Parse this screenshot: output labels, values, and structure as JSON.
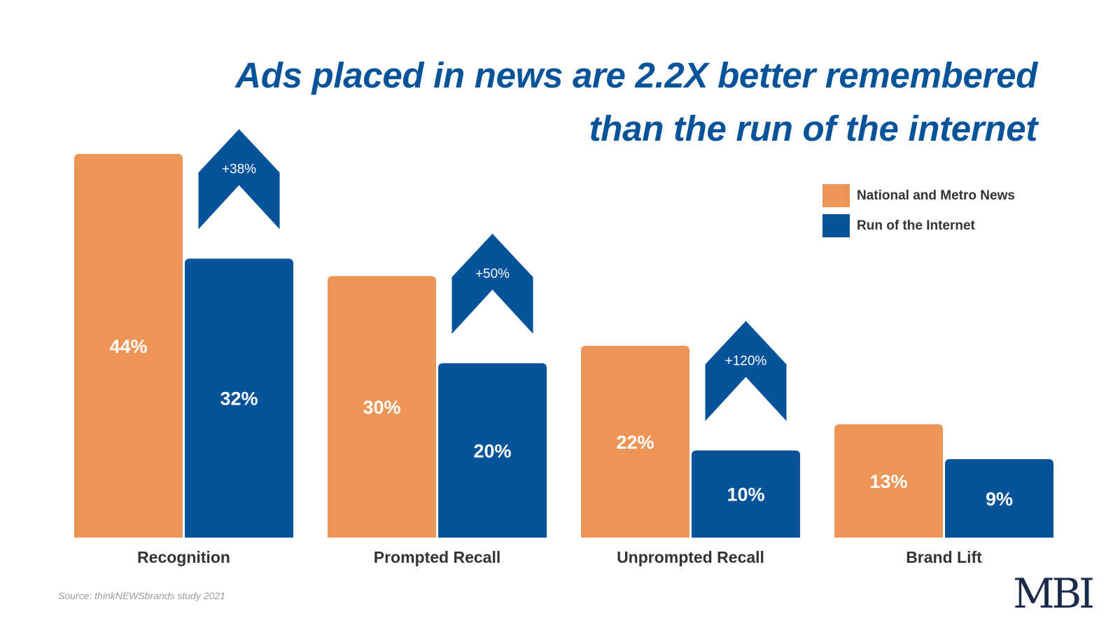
{
  "title_lines": [
    "Ads placed in news are 2.2X better remembered",
    "than the run of the internet"
  ],
  "source": "Source: thinkNEWSbrands study 2021",
  "logo": "MBI",
  "colors": {
    "news": "#ec9556",
    "internet": "#06539a",
    "title": "#06539a",
    "category_label": "#333333"
  },
  "legend": [
    {
      "label": "National and Metro News",
      "color": "#ec9556"
    },
    {
      "label": "Run of the Internet",
      "color": "#06539a"
    }
  ],
  "chart_data": {
    "type": "bar",
    "categories": [
      "Recognition",
      "Prompted Recall",
      "Unprompted Recall",
      "Brand Lift"
    ],
    "series": [
      {
        "name": "National and Metro News",
        "values": [
          44,
          30,
          22,
          13
        ],
        "labels": [
          "44%",
          "30%",
          "22%",
          "13%"
        ]
      },
      {
        "name": "Run of the Internet",
        "values": [
          32,
          20,
          10,
          9
        ],
        "labels": [
          "32%",
          "20%",
          "10%",
          "9%"
        ]
      }
    ],
    "lift_annotations": [
      "+38%",
      "+50%",
      "+120%",
      null
    ],
    "ylim": [
      0,
      44
    ],
    "grid": false,
    "legend_position": "top-right"
  }
}
